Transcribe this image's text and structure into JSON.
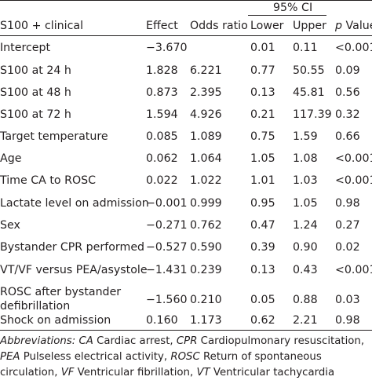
{
  "header": {
    "ci_label": "95% CI",
    "col_label": "S100 + clinical",
    "col_effect": "Effect",
    "col_odds": "Odds ratio",
    "col_lower": "Lower",
    "col_upper": "Upper",
    "col_p_italic": "p",
    "col_p_rest": " Value"
  },
  "rows": [
    {
      "label": "Intercept",
      "effect": "−3.670",
      "odds": "",
      "lower": "0.01",
      "upper": "0.11",
      "p": "<0.001"
    },
    {
      "label": "S100 at 24 h",
      "effect": "1.828",
      "odds": "6.221",
      "lower": "0.77",
      "upper": "50.55",
      "p": "0.09"
    },
    {
      "label": "S100 at 48 h",
      "effect": "0.873",
      "odds": "2.395",
      "lower": "0.13",
      "upper": "45.81",
      "p": "0.56"
    },
    {
      "label": "S100 at 72 h",
      "effect": "1.594",
      "odds": "4.926",
      "lower": "0.21",
      "upper": "117.39",
      "p": "0.32"
    },
    {
      "label": "Target temperature",
      "effect": "0.085",
      "odds": "1.089",
      "lower": "0.75",
      "upper": "1.59",
      "p": "0.66"
    },
    {
      "label": "Age",
      "effect": "0.062",
      "odds": "1.064",
      "lower": "1.05",
      "upper": "1.08",
      "p": "<0.001"
    },
    {
      "label": "Time CA to ROSC",
      "effect": "0.022",
      "odds": "1.022",
      "lower": "1.01",
      "upper": "1.03",
      "p": "<0.001"
    },
    {
      "label": "Lactate level on admission",
      "effect": "−0.001",
      "odds": "0.999",
      "lower": "0.95",
      "upper": "1.05",
      "p": "0.98"
    },
    {
      "label": "Sex",
      "effect": "−0.271",
      "odds": "0.762",
      "lower": "0.47",
      "upper": "1.24",
      "p": "0.27"
    },
    {
      "label": "Bystander CPR performed",
      "effect": "−0.527",
      "odds": "0.590",
      "lower": "0.39",
      "upper": "0.90",
      "p": "0.02"
    },
    {
      "label": "VT/VF versus PEA/asystole",
      "effect": "−1.431",
      "odds": "0.239",
      "lower": "0.13",
      "upper": "0.43",
      "p": "<0.001"
    },
    {
      "label": "ROSC after bystander defibrillation",
      "effect": "−1.560",
      "odds": "0.210",
      "lower": "0.05",
      "upper": "0.88",
      "p": "0.03"
    },
    {
      "label": "Shock on admission",
      "effect": "0.160",
      "odds": "1.173",
      "lower": "0.62",
      "upper": "2.21",
      "p": "0.98"
    }
  ],
  "footnote": {
    "lead": "Abbreviations:",
    "items": [
      {
        "abbr": "CA",
        "text": " Cardiac arrest, "
      },
      {
        "abbr": "CPR",
        "text": " Cardiopulmonary resuscitation, "
      },
      {
        "abbr": "PEA",
        "text": " Pulseless electrical activity, "
      },
      {
        "abbr": "ROSC",
        "text": " Return of spontaneous circulation, "
      },
      {
        "abbr": "VF",
        "text": " Ventricular fibrillation, "
      },
      {
        "abbr": "VT",
        "text": " Ventricular tachycardia"
      }
    ]
  }
}
